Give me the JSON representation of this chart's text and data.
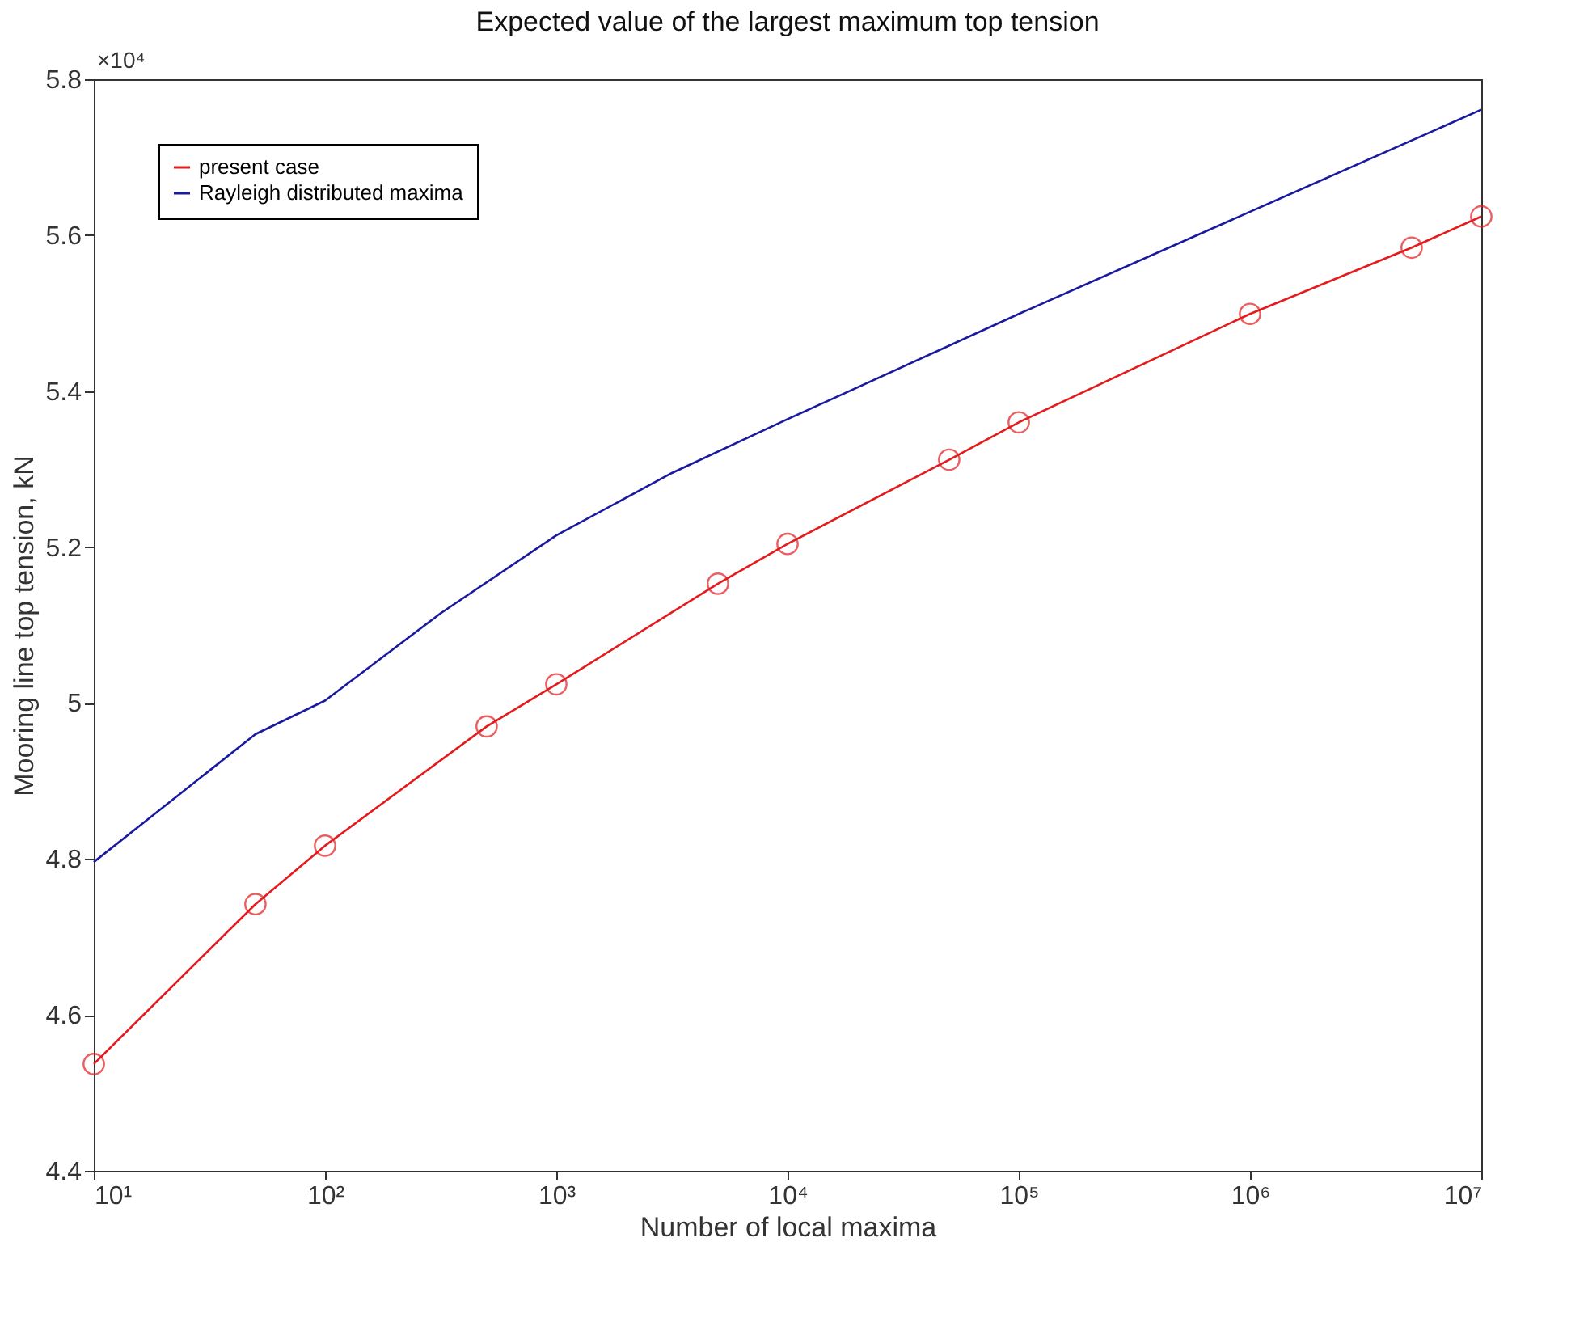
{
  "chart_data": {
    "type": "line",
    "title": "Expected value of the largest maximum top tension",
    "xlabel": "Number of local maxima",
    "ylabel": "Mooring line top tension, kN",
    "annotations": [
      "×10⁴"
    ],
    "log": "x",
    "grid": false,
    "legend": "top left",
    "xlim": [
      10,
      10000000
    ],
    "xticks": [
      {
        "value": 10,
        "label": "10¹"
      },
      {
        "value": 100,
        "label": "10²"
      },
      {
        "value": 1000,
        "label": "10³"
      },
      {
        "value": 10000,
        "label": "10⁴"
      },
      {
        "value": 100000,
        "label": "10⁵"
      },
      {
        "value": 1000000,
        "label": "10⁶"
      },
      {
        "value": 10000000,
        "label": "10⁷"
      }
    ],
    "ylim": [
      4.4,
      5.8
    ],
    "yticks": [
      4.4,
      4.6,
      4.8,
      5,
      5.2,
      5.4,
      5.6,
      5.8
    ],
    "series": [
      {
        "name": "present case",
        "color": "#e41a1c",
        "marker": "circle",
        "x": [
          10,
          50,
          100,
          500,
          1000,
          5000,
          10000,
          50000,
          100000,
          1000000,
          5000000,
          10000000
        ],
        "values": [
          4.537,
          4.742,
          4.817,
          4.97,
          5.024,
          5.153,
          5.204,
          5.312,
          5.36,
          5.499,
          5.584,
          5.624
        ]
      },
      {
        "name": "Rayleigh distributed maxima",
        "color": "#1a1aa0",
        "marker": "none",
        "x": [
          10,
          50,
          100,
          316,
          1000,
          3162,
          10000,
          100000,
          1000000,
          10000000
        ],
        "values": [
          4.796,
          4.96,
          5.003,
          5.115,
          5.215,
          5.295,
          5.364,
          5.499,
          5.63,
          5.761
        ]
      }
    ]
  }
}
